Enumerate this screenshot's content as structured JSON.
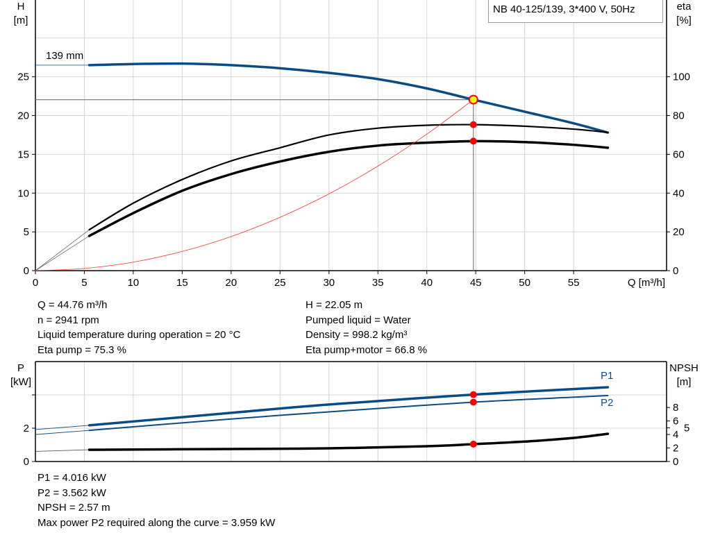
{
  "legend": {
    "text": "NB 40-125/139, 3*400 V, 50Hz"
  },
  "colors": {
    "head": "#0a4a85",
    "eta": "#000000",
    "system": "#ff3030",
    "marker": "#ff0000",
    "marker_highlight": "#ffff00",
    "grid": "#d4d4d4",
    "operating_line": "#808080"
  },
  "chart_data": [
    {
      "type": "line",
      "title": "",
      "xlabel": "Q [m³/h]",
      "ylabel_left_lines": [
        "H",
        "[m]"
      ],
      "ylabel_right_lines": [
        "eta",
        "[%]"
      ],
      "xlim": [
        0,
        64.5
      ],
      "ylim_left": [
        0,
        34.9
      ],
      "ylim_right": [
        0,
        139.6
      ],
      "x_ticks": [
        0,
        5,
        10,
        15,
        20,
        25,
        30,
        35,
        40,
        45,
        50,
        55
      ],
      "y_left_ticks": [
        0,
        5,
        10,
        15,
        20,
        25
      ],
      "y_right_ticks": [
        0,
        20,
        40,
        60,
        80,
        100
      ],
      "grid": true,
      "annotation": "139 mm",
      "series": [
        {
          "key": "head",
          "axis": "left",
          "extrapolated": [
            [
              0,
              26.5
            ],
            [
              5.5,
              26.5
            ]
          ],
          "x": [
            5.5,
            10,
            15,
            20,
            25,
            30,
            35,
            40,
            44.76,
            50,
            55,
            58.5
          ],
          "y": [
            26.5,
            26.65,
            26.7,
            26.5,
            26.1,
            25.5,
            24.7,
            23.5,
            22.05,
            20.5,
            19.0,
            17.8
          ]
        },
        {
          "key": "eta_pump",
          "axis": "right",
          "extrapolated": [
            [
              0,
              0
            ],
            [
              5.5,
              21.1
            ]
          ],
          "x": [
            5.5,
            10,
            15,
            20,
            25,
            30,
            35,
            40,
            45,
            50,
            55,
            58.5
          ],
          "y": [
            21.1,
            34.8,
            47,
            56.6,
            63.4,
            70,
            73.5,
            75,
            75.3,
            74.5,
            73,
            71.3
          ]
        },
        {
          "key": "eta_pump_motor",
          "axis": "right",
          "extrapolated": [
            [
              0,
              0
            ],
            [
              5.5,
              17.9
            ]
          ],
          "x": [
            5.5,
            10,
            15,
            20,
            25,
            30,
            35,
            40,
            45,
            50,
            55,
            58.5
          ],
          "y": [
            17.9,
            29.7,
            41.2,
            49.8,
            56.3,
            61.3,
            64.5,
            66,
            66.8,
            66.3,
            64.9,
            63.4
          ]
        },
        {
          "key": "system",
          "axis": "left",
          "x": [
            0,
            5,
            10,
            15,
            20,
            25,
            30,
            35,
            40,
            44.76
          ],
          "y": [
            0,
            0.28,
            1.1,
            2.48,
            4.4,
            6.88,
            9.9,
            13.48,
            17.6,
            22.05
          ]
        }
      ],
      "duty_point": {
        "Q": 44.76,
        "H": 22.05,
        "eta_pump": 75.3,
        "eta_pump_motor": 66.8
      }
    },
    {
      "type": "line",
      "title": "",
      "ylabel_left_lines": [
        "P",
        "[kW]"
      ],
      "ylabel_right_lines": [
        "NPSH",
        "[m]"
      ],
      "xlim": [
        0,
        64.5
      ],
      "ylim_left": [
        0,
        6
      ],
      "ylim_right": [
        0,
        14.8
      ],
      "x_ticks": [
        0,
        5,
        10,
        15,
        20,
        25,
        30,
        35,
        40,
        45,
        50,
        55
      ],
      "y_left_ticks": [
        0,
        2,
        4
      ],
      "y_left_tick_labels": [
        "0",
        "2",
        ""
      ],
      "y_right_ticks": [
        0,
        2,
        4,
        5,
        6,
        8
      ],
      "grid": true,
      "series": [
        {
          "key": "P1",
          "name": "P1",
          "axis": "left",
          "extrapolated": [
            [
              0,
              1.92
            ],
            [
              5.5,
              2.17
            ]
          ],
          "x": [
            5.5,
            20,
            30,
            44.76,
            58.5
          ],
          "y": [
            2.17,
            2.92,
            3.42,
            4.016,
            4.46
          ]
        },
        {
          "key": "P2",
          "name": "P2",
          "axis": "left",
          "extrapolated": [
            [
              0,
              1.62
            ],
            [
              5.5,
              1.87
            ]
          ],
          "x": [
            5.5,
            20,
            30,
            44.76,
            58.5
          ],
          "y": [
            1.87,
            2.55,
            2.98,
            3.562,
            3.959
          ]
        },
        {
          "key": "NPSH",
          "axis": "right",
          "extrapolated": [
            [
              0,
              1.5
            ],
            [
              5.5,
              1.74
            ]
          ],
          "x": [
            5.5,
            20,
            30,
            40,
            44.76,
            50,
            55,
            58.5
          ],
          "y": [
            1.74,
            1.85,
            1.95,
            2.26,
            2.57,
            2.95,
            3.5,
            4.1
          ]
        }
      ],
      "duty_point": {
        "Q": 44.76,
        "P1": 4.016,
        "P2": 3.562,
        "NPSH": 2.57
      }
    }
  ],
  "info_top_left": [
    "Q = 44.76 m³/h",
    "n = 2941 rpm",
    "Liquid temperature during operation = 20 °C",
    "Eta pump = 75.3 %"
  ],
  "info_top_right": [
    "H = 22.05 m",
    "Pumped liquid = Water",
    "Density = 998.2 kg/m³",
    "Eta pump+motor = 66.8 %"
  ],
  "info_bottom": [
    "P1 = 4.016 kW",
    "P2 = 3.562 kW",
    "NPSH = 2.57 m",
    "Max power P2 required along the curve = 3.959 kW"
  ]
}
